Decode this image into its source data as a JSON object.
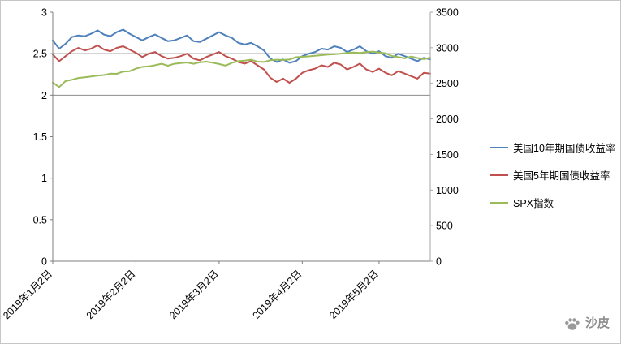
{
  "chart_data": {
    "type": "line",
    "title": "",
    "legend_position": "right",
    "grid": "horizontal-reference-lines-only",
    "x_tick_labels": [
      "2019年1月2日",
      "2019年2月2日",
      "2019年3月2日",
      "2019年4月2日",
      "2019年5月2日"
    ],
    "x_tick_indices": [
      0,
      13,
      26,
      39,
      51
    ],
    "left_axis": {
      "min": 0,
      "max": 3,
      "tick_labels": [
        "0",
        "0.5",
        "1",
        "1.5",
        "2",
        "2.5",
        "3"
      ]
    },
    "right_axis": {
      "min": 0,
      "max": 3500,
      "tick_labels": [
        "0",
        "500",
        "1000",
        "1500",
        "2000",
        "2500",
        "3000",
        "3500"
      ]
    },
    "reference_lines_left": [
      2,
      2.5
    ],
    "series": [
      {
        "name": "美国10年期国债收益率",
        "axis": "left",
        "color": "#4f81bd",
        "values": [
          2.66,
          2.56,
          2.62,
          2.7,
          2.72,
          2.71,
          2.74,
          2.78,
          2.73,
          2.71,
          2.76,
          2.79,
          2.74,
          2.7,
          2.66,
          2.7,
          2.73,
          2.69,
          2.65,
          2.66,
          2.69,
          2.72,
          2.65,
          2.64,
          2.68,
          2.72,
          2.76,
          2.72,
          2.69,
          2.63,
          2.61,
          2.63,
          2.59,
          2.54,
          2.44,
          2.4,
          2.43,
          2.39,
          2.41,
          2.47,
          2.5,
          2.52,
          2.56,
          2.55,
          2.59,
          2.57,
          2.52,
          2.55,
          2.59,
          2.53,
          2.5,
          2.53,
          2.47,
          2.45,
          2.5,
          2.47,
          2.44,
          2.41,
          2.45,
          2.43
        ]
      },
      {
        "name": "美国5年期国债收益率",
        "axis": "left",
        "color": "#c0504d",
        "values": [
          2.49,
          2.41,
          2.47,
          2.53,
          2.57,
          2.54,
          2.56,
          2.6,
          2.55,
          2.53,
          2.57,
          2.59,
          2.55,
          2.51,
          2.46,
          2.5,
          2.52,
          2.47,
          2.44,
          2.45,
          2.47,
          2.5,
          2.44,
          2.42,
          2.46,
          2.49,
          2.52,
          2.47,
          2.44,
          2.4,
          2.38,
          2.41,
          2.36,
          2.31,
          2.21,
          2.16,
          2.2,
          2.15,
          2.2,
          2.27,
          2.3,
          2.32,
          2.36,
          2.34,
          2.39,
          2.37,
          2.31,
          2.34,
          2.38,
          2.31,
          2.28,
          2.32,
          2.27,
          2.24,
          2.29,
          2.26,
          2.23,
          2.2,
          2.27,
          2.26
        ]
      },
      {
        "name": "SPX指数",
        "axis": "right",
        "color": "#9bbb59",
        "values": [
          2510,
          2448,
          2532,
          2550,
          2575,
          2585,
          2596,
          2610,
          2616,
          2636,
          2633,
          2665,
          2670,
          2706,
          2732,
          2738,
          2754,
          2775,
          2748,
          2775,
          2784,
          2793,
          2775,
          2796,
          2804,
          2790,
          2771,
          2749,
          2789,
          2811,
          2818,
          2832,
          2805,
          2800,
          2824,
          2832,
          2829,
          2834,
          2867,
          2873,
          2879,
          2888,
          2896,
          2905,
          2908,
          2917,
          2927,
          2933,
          2926,
          2939,
          2946,
          2932,
          2923,
          2884,
          2870,
          2851,
          2876,
          2856,
          2840,
          2860
        ]
      }
    ]
  },
  "watermark": {
    "label": "沙皮"
  }
}
